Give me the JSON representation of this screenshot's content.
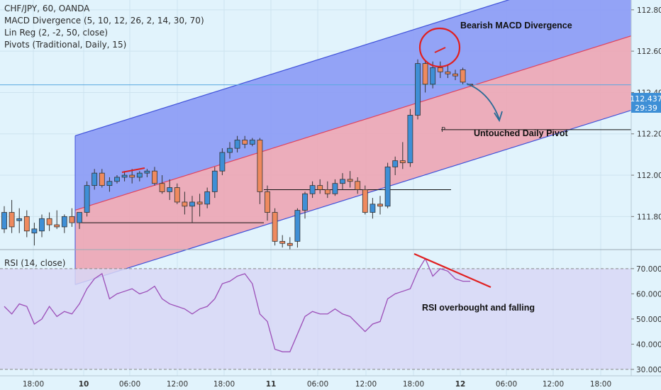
{
  "header": {
    "symbol_line": "CHF/JPY, 60, OANDA",
    "indicators": [
      "MACD Divergence (5, 10, 12, 26, 2, 14, 30, 70)",
      "Lin Reg (2, -2, 50, close)",
      "Pivots (Traditional, Daily, 15)"
    ],
    "rsi_label": "RSI (14, close)"
  },
  "annotations": {
    "macd": "Bearish MACD Divergence",
    "pivot": "Untouched Daily Pivot",
    "rsi": "RSI overbought and falling",
    "pivot_marker": "P"
  },
  "price_tag": {
    "price": "112.437",
    "countdown": "29:39"
  },
  "colors": {
    "background": "#e1f3fc",
    "up_candle": "#3e8fd6",
    "down_candle": "#ef8a5e",
    "upper_channel": "#8c9cf5",
    "lower_channel": "#eda7b5",
    "channel_line": "#3f51d9",
    "mid_line": "#e0435e",
    "rsi_line": "#9c4fb8",
    "rsi_band": "#d8d7f6",
    "annotation_red": "#e02020",
    "arrow": "#2b6b96",
    "price_tag_bg": "#3e8fd6"
  },
  "chart_data": [
    {
      "type": "candlestick",
      "y_axis_ticks": [
        "112.800",
        "112.600",
        "112.400",
        "112.200",
        "112.000",
        "111.800"
      ],
      "x_axis_ticks": [
        "18:00",
        "10",
        "06:00",
        "12:00",
        "18:00",
        "11",
        "06:00",
        "12:00",
        "18:00",
        "12",
        "06:00",
        "12:00",
        "18:00"
      ],
      "ylim": [
        111.64,
        112.82
      ],
      "last_price": 112.437,
      "candles": [
        {
          "o": 111.74,
          "h": 111.85,
          "l": 111.72,
          "c": 111.82
        },
        {
          "o": 111.82,
          "h": 111.88,
          "l": 111.72,
          "c": 111.75
        },
        {
          "o": 111.78,
          "h": 111.84,
          "l": 111.72,
          "c": 111.79
        },
        {
          "o": 111.8,
          "h": 111.83,
          "l": 111.7,
          "c": 111.73
        },
        {
          "o": 111.72,
          "h": 111.77,
          "l": 111.66,
          "c": 111.74
        },
        {
          "o": 111.73,
          "h": 111.81,
          "l": 111.7,
          "c": 111.79
        },
        {
          "o": 111.79,
          "h": 111.82,
          "l": 111.73,
          "c": 111.76
        },
        {
          "o": 111.76,
          "h": 111.83,
          "l": 111.74,
          "c": 111.75
        },
        {
          "o": 111.75,
          "h": 111.81,
          "l": 111.72,
          "c": 111.8
        },
        {
          "o": 111.8,
          "h": 111.84,
          "l": 111.75,
          "c": 111.77
        },
        {
          "o": 111.77,
          "h": 111.82,
          "l": 111.74,
          "c": 111.82
        },
        {
          "o": 111.82,
          "h": 111.97,
          "l": 111.8,
          "c": 111.95
        },
        {
          "o": 111.95,
          "h": 112.03,
          "l": 111.93,
          "c": 112.01
        },
        {
          "o": 112.01,
          "h": 112.03,
          "l": 111.94,
          "c": 111.95
        },
        {
          "o": 111.95,
          "h": 111.99,
          "l": 111.92,
          "c": 111.97
        },
        {
          "o": 111.97,
          "h": 112.0,
          "l": 111.96,
          "c": 111.99
        },
        {
          "o": 111.99,
          "h": 112.02,
          "l": 111.97,
          "c": 112.0
        },
        {
          "o": 112.0,
          "h": 112.03,
          "l": 111.96,
          "c": 111.99
        },
        {
          "o": 111.99,
          "h": 112.02,
          "l": 111.97,
          "c": 112.01
        },
        {
          "o": 112.01,
          "h": 112.03,
          "l": 111.99,
          "c": 112.02
        },
        {
          "o": 112.02,
          "h": 112.04,
          "l": 111.95,
          "c": 111.96
        },
        {
          "o": 111.96,
          "h": 112.0,
          "l": 111.91,
          "c": 111.92
        },
        {
          "o": 111.92,
          "h": 111.98,
          "l": 111.88,
          "c": 111.94
        },
        {
          "o": 111.94,
          "h": 111.96,
          "l": 111.86,
          "c": 111.87
        },
        {
          "o": 111.87,
          "h": 111.92,
          "l": 111.81,
          "c": 111.85
        },
        {
          "o": 111.85,
          "h": 111.9,
          "l": 111.77,
          "c": 111.87
        },
        {
          "o": 111.87,
          "h": 111.91,
          "l": 111.8,
          "c": 111.86
        },
        {
          "o": 111.86,
          "h": 111.94,
          "l": 111.84,
          "c": 111.92
        },
        {
          "o": 111.92,
          "h": 112.04,
          "l": 111.89,
          "c": 112.02
        },
        {
          "o": 112.02,
          "h": 112.13,
          "l": 112.0,
          "c": 112.11
        },
        {
          "o": 112.11,
          "h": 112.16,
          "l": 112.08,
          "c": 112.13
        },
        {
          "o": 112.13,
          "h": 112.19,
          "l": 112.11,
          "c": 112.17
        },
        {
          "o": 112.17,
          "h": 112.19,
          "l": 112.13,
          "c": 112.15
        },
        {
          "o": 112.15,
          "h": 112.18,
          "l": 112.14,
          "c": 112.17
        },
        {
          "o": 112.17,
          "h": 112.18,
          "l": 111.86,
          "c": 111.92
        },
        {
          "o": 111.92,
          "h": 111.95,
          "l": 111.78,
          "c": 111.82
        },
        {
          "o": 111.82,
          "h": 111.84,
          "l": 111.66,
          "c": 111.68
        },
        {
          "o": 111.68,
          "h": 111.71,
          "l": 111.65,
          "c": 111.67
        },
        {
          "o": 111.67,
          "h": 111.7,
          "l": 111.64,
          "c": 111.66
        },
        {
          "o": 111.68,
          "h": 111.84,
          "l": 111.65,
          "c": 111.83
        },
        {
          "o": 111.83,
          "h": 111.92,
          "l": 111.79,
          "c": 111.91
        },
        {
          "o": 111.91,
          "h": 111.97,
          "l": 111.89,
          "c": 111.95
        },
        {
          "o": 111.95,
          "h": 111.98,
          "l": 111.91,
          "c": 111.93
        },
        {
          "o": 111.93,
          "h": 111.97,
          "l": 111.89,
          "c": 111.91
        },
        {
          "o": 111.91,
          "h": 111.98,
          "l": 111.9,
          "c": 111.96
        },
        {
          "o": 111.96,
          "h": 112.01,
          "l": 111.93,
          "c": 111.98
        },
        {
          "o": 111.98,
          "h": 112.02,
          "l": 111.94,
          "c": 111.97
        },
        {
          "o": 111.97,
          "h": 111.99,
          "l": 111.91,
          "c": 111.93
        },
        {
          "o": 111.93,
          "h": 111.95,
          "l": 111.81,
          "c": 111.82
        },
        {
          "o": 111.82,
          "h": 111.89,
          "l": 111.79,
          "c": 111.86
        },
        {
          "o": 111.86,
          "h": 111.9,
          "l": 111.81,
          "c": 111.85
        },
        {
          "o": 111.85,
          "h": 112.06,
          "l": 111.84,
          "c": 112.04
        },
        {
          "o": 112.04,
          "h": 112.09,
          "l": 112.0,
          "c": 112.07
        },
        {
          "o": 112.07,
          "h": 112.16,
          "l": 112.03,
          "c": 112.06
        },
        {
          "o": 112.06,
          "h": 112.32,
          "l": 112.04,
          "c": 112.29
        },
        {
          "o": 112.29,
          "h": 112.56,
          "l": 112.27,
          "c": 112.54
        },
        {
          "o": 112.54,
          "h": 112.55,
          "l": 112.4,
          "c": 112.44
        },
        {
          "o": 112.44,
          "h": 112.55,
          "l": 112.42,
          "c": 112.52
        },
        {
          "o": 112.52,
          "h": 112.55,
          "l": 112.47,
          "c": 112.5
        },
        {
          "o": 112.5,
          "h": 112.53,
          "l": 112.47,
          "c": 112.49
        },
        {
          "o": 112.49,
          "h": 112.51,
          "l": 112.46,
          "c": 112.48
        },
        {
          "o": 112.51,
          "h": 112.52,
          "l": 112.44,
          "c": 112.45
        },
        {
          "o": 112.44,
          "h": 112.44,
          "l": 112.43,
          "c": 112.437
        }
      ],
      "pivot_level": 112.22,
      "support_lines": [
        111.77,
        111.93
      ],
      "regression_channel": {
        "start_index": 12,
        "end_index": 62,
        "mid_start": 111.86,
        "mid_end": 112.43,
        "upper_offset": 0.36,
        "lower_offset": -0.36
      }
    },
    {
      "type": "line",
      "name": "RSI (14, close)",
      "y_axis_ticks": [
        "70.0000",
        "60.0000",
        "50.0000",
        "40.0000",
        "30.0000"
      ],
      "ylim": [
        28,
        77
      ],
      "band": [
        30,
        70
      ],
      "values": [
        55,
        52,
        56,
        55,
        48,
        50,
        55,
        51,
        53,
        52,
        56,
        62,
        66,
        68,
        58,
        60,
        61,
        62,
        60,
        61,
        63,
        58,
        56,
        55,
        54,
        52,
        54,
        55,
        58,
        64,
        65,
        67,
        68,
        64,
        52,
        49,
        38,
        37,
        37,
        44,
        51,
        53,
        52,
        52,
        54,
        52,
        51,
        48,
        45,
        48,
        49,
        58,
        60,
        61,
        62,
        69,
        74,
        67,
        70,
        69,
        66,
        65,
        65
      ]
    }
  ]
}
